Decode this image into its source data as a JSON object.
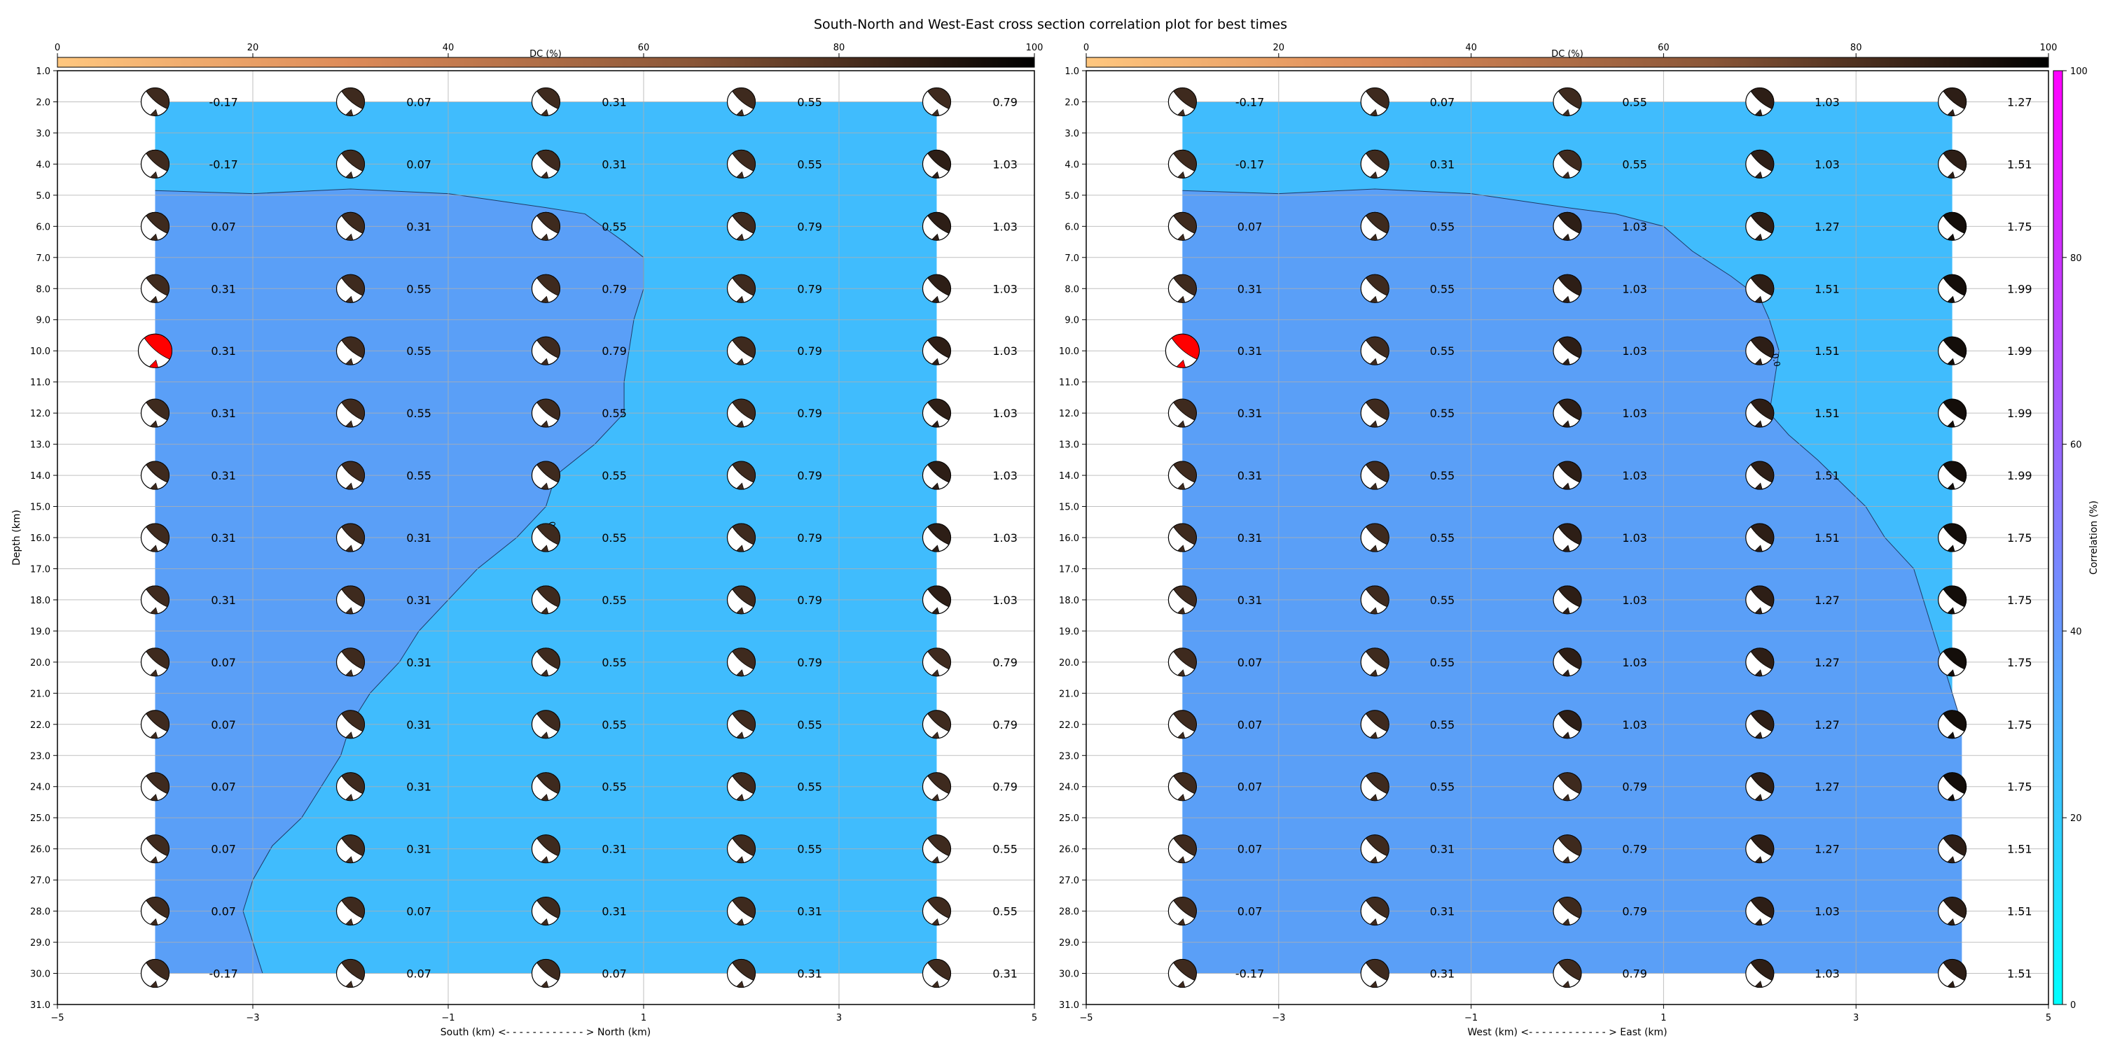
{
  "figure": {
    "title": "South-North and West-East cross section correlation plot for best times"
  },
  "dc_colorbar": {
    "label": "DC (%)",
    "min": 0,
    "max": 100,
    "ticks": [
      "0",
      "20",
      "40",
      "60",
      "80",
      "100"
    ],
    "colormap": "copper_r"
  },
  "correlation_colorbar": {
    "label": "Correlation (%)",
    "min": 0,
    "max": 100,
    "ticks": [
      "0",
      "20",
      "40",
      "60",
      "80",
      "100"
    ],
    "colormap": "cool"
  },
  "chart_data": [
    {
      "type": "contour",
      "xlabel": "South (km) <- - - - - - - - - - - - > North (km)",
      "ylabel": "Depth (km)",
      "xlim": [
        -5,
        5
      ],
      "ylim": [
        31,
        1
      ],
      "x_ticks": [
        "−5",
        "−3",
        "−1",
        "1",
        "3",
        "5"
      ],
      "y_ticks": [
        "1.0",
        "2.0",
        "3.0",
        "4.0",
        "5.0",
        "6.0",
        "7.0",
        "8.0",
        "9.0",
        "10.0",
        "11.0",
        "12.0",
        "13.0",
        "14.0",
        "15.0",
        "16.0",
        "17.0",
        "18.0",
        "19.0",
        "20.0",
        "21.0",
        "22.0",
        "23.0",
        "24.0",
        "25.0",
        "26.0",
        "27.0",
        "28.0",
        "29.0",
        "30.0",
        "31.0"
      ],
      "grid": true,
      "x": [
        -4,
        -2,
        0,
        2,
        4
      ],
      "depths": [
        2,
        4,
        6,
        8,
        10,
        12,
        14,
        16,
        18,
        20,
        22,
        24,
        26,
        28,
        30
      ],
      "values": [
        [
          "-0.17",
          "0.07",
          "0.31",
          "0.55",
          "0.79"
        ],
        [
          "-0.17",
          "0.07",
          "0.31",
          "0.55",
          "1.03"
        ],
        [
          "0.07",
          "0.31",
          "0.55",
          "0.79",
          "1.03"
        ],
        [
          "0.31",
          "0.55",
          "0.79",
          "0.79",
          "1.03"
        ],
        [
          "0.31",
          "0.55",
          "0.79",
          "0.79",
          "1.03"
        ],
        [
          "0.31",
          "0.55",
          "0.55",
          "0.79",
          "1.03"
        ],
        [
          "0.31",
          "0.55",
          "0.55",
          "0.79",
          "1.03"
        ],
        [
          "0.31",
          "0.31",
          "0.55",
          "0.79",
          "1.03"
        ],
        [
          "0.31",
          "0.31",
          "0.55",
          "0.79",
          "1.03"
        ],
        [
          "0.07",
          "0.31",
          "0.55",
          "0.79",
          "0.79"
        ],
        [
          "0.07",
          "0.31",
          "0.55",
          "0.55",
          "0.79"
        ],
        [
          "0.07",
          "0.31",
          "0.55",
          "0.55",
          "0.79"
        ],
        [
          "0.07",
          "0.31",
          "0.31",
          "0.55",
          "0.55"
        ],
        [
          "0.07",
          "0.07",
          "0.31",
          "0.31",
          "0.55"
        ],
        [
          "-0.17",
          "0.07",
          "0.07",
          "0.31",
          "0.31"
        ]
      ],
      "best_solution": {
        "x": -4,
        "depth": 10
      },
      "contour_level_label": "0",
      "contour_level_label_at": {
        "x": 0,
        "depth": 15.5
      },
      "contour_boundary": [
        [
          -4,
          4.85
        ],
        [
          -3,
          4.95
        ],
        [
          -2,
          4.8
        ],
        [
          -1,
          4.95
        ],
        [
          0,
          5.4
        ],
        [
          0.4,
          5.6
        ],
        [
          0.8,
          6.5
        ],
        [
          1,
          7
        ],
        [
          1,
          8
        ],
        [
          0.9,
          9
        ],
        [
          0.8,
          11
        ],
        [
          0.8,
          12
        ],
        [
          0.5,
          13
        ],
        [
          0.1,
          14
        ],
        [
          0,
          15
        ],
        [
          -0.3,
          16
        ],
        [
          -0.7,
          17
        ],
        [
          -1,
          18
        ],
        [
          -1.3,
          19
        ],
        [
          -1.5,
          20
        ],
        [
          -1.8,
          21
        ],
        [
          -2,
          22
        ],
        [
          -2.1,
          23
        ],
        [
          -2.3,
          24
        ],
        [
          -2.5,
          25
        ],
        [
          -2.8,
          25.9
        ],
        [
          -3,
          27
        ],
        [
          -3.1,
          28
        ],
        [
          -3,
          29
        ],
        [
          -2.9,
          30
        ]
      ],
      "inner_color": "#5a9ff7",
      "outer_color": "#40bcfd"
    },
    {
      "type": "contour",
      "xlabel": "West (km) <- - - - - - - - - - - - > East (km)",
      "ylabel": "",
      "xlim": [
        -5,
        5
      ],
      "ylim": [
        31,
        1
      ],
      "x_ticks": [
        "−5",
        "−3",
        "−1",
        "1",
        "3",
        "5"
      ],
      "y_ticks": [
        "1.0",
        "2.0",
        "3.0",
        "4.0",
        "5.0",
        "6.0",
        "7.0",
        "8.0",
        "9.0",
        "10.0",
        "11.0",
        "12.0",
        "13.0",
        "14.0",
        "15.0",
        "16.0",
        "17.0",
        "18.0",
        "19.0",
        "20.0",
        "21.0",
        "22.0",
        "23.0",
        "24.0",
        "25.0",
        "26.0",
        "27.0",
        "28.0",
        "29.0",
        "30.0",
        "31.0"
      ],
      "grid": true,
      "x": [
        -4,
        -2,
        0,
        2,
        4
      ],
      "depths": [
        2,
        4,
        6,
        8,
        10,
        12,
        14,
        16,
        18,
        20,
        22,
        24,
        26,
        28,
        30
      ],
      "values": [
        [
          "-0.17",
          "0.07",
          "0.55",
          "1.03",
          "1.27"
        ],
        [
          "-0.17",
          "0.31",
          "0.55",
          "1.03",
          "1.51"
        ],
        [
          "0.07",
          "0.55",
          "1.03",
          "1.27",
          "1.75"
        ],
        [
          "0.31",
          "0.55",
          "1.03",
          "1.51",
          "1.99"
        ],
        [
          "0.31",
          "0.55",
          "1.03",
          "1.51",
          "1.99"
        ],
        [
          "0.31",
          "0.55",
          "1.03",
          "1.51",
          "1.99"
        ],
        [
          "0.31",
          "0.55",
          "1.03",
          "1.51",
          "1.99"
        ],
        [
          "0.31",
          "0.55",
          "1.03",
          "1.51",
          "1.75"
        ],
        [
          "0.31",
          "0.55",
          "1.03",
          "1.27",
          "1.75"
        ],
        [
          "0.07",
          "0.55",
          "1.03",
          "1.27",
          "1.75"
        ],
        [
          "0.07",
          "0.55",
          "1.03",
          "1.27",
          "1.75"
        ],
        [
          "0.07",
          "0.55",
          "0.79",
          "1.27",
          "1.75"
        ],
        [
          "0.07",
          "0.31",
          "0.79",
          "1.27",
          "1.51"
        ],
        [
          "0.07",
          "0.31",
          "0.79",
          "1.03",
          "1.51"
        ],
        [
          "-0.17",
          "0.31",
          "0.79",
          "1.03",
          "1.51"
        ]
      ],
      "best_solution": {
        "x": -4,
        "depth": 10
      },
      "contour_level_label": "0.0",
      "contour_level_label_at": {
        "x": 2.1,
        "depth": 10.1
      },
      "contour_boundary": [
        [
          -4,
          4.85
        ],
        [
          -3,
          4.95
        ],
        [
          -2,
          4.8
        ],
        [
          -1,
          4.95
        ],
        [
          0,
          5.4
        ],
        [
          0.5,
          5.6
        ],
        [
          1,
          6
        ],
        [
          1.3,
          6.8
        ],
        [
          1.7,
          7.6
        ],
        [
          2,
          8.3
        ],
        [
          2.1,
          9
        ],
        [
          2.2,
          10
        ],
        [
          2.15,
          11
        ],
        [
          2.1,
          12
        ],
        [
          2.3,
          12.7
        ],
        [
          2.6,
          13.5
        ],
        [
          2.9,
          14.4
        ],
        [
          3.1,
          15
        ],
        [
          3.3,
          16
        ],
        [
          3.6,
          17
        ],
        [
          3.7,
          18
        ],
        [
          3.8,
          19
        ],
        [
          3.9,
          20
        ],
        [
          4,
          21
        ],
        [
          4.1,
          22
        ]
      ],
      "inner_color": "#5a9ff7",
      "outer_color": "#40bcfd"
    }
  ]
}
